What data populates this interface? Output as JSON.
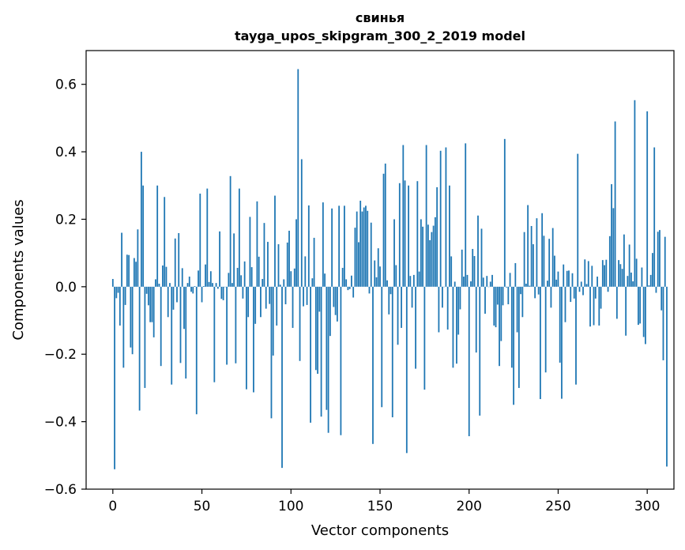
{
  "chart_data": {
    "type": "bar",
    "title": "свинья",
    "subtitle": "tayga_upos_skipgram_300_2_2019 model",
    "xlabel": "Vector components",
    "ylabel": "Components values",
    "xlim": [
      -15,
      315
    ],
    "ylim": [
      -0.6,
      0.7
    ],
    "xticks": [
      0,
      50,
      100,
      150,
      200,
      250,
      300
    ],
    "yticks": [
      -0.6,
      -0.4,
      -0.2,
      0.0,
      0.2,
      0.4,
      0.6
    ],
    "xtick_labels": [
      "0",
      "50",
      "100",
      "150",
      "200",
      "250",
      "300"
    ],
    "ytick_labels": [
      "−0.6",
      "−0.4",
      "−0.2",
      "0.0",
      "0.2",
      "0.4",
      "0.6"
    ],
    "bar_color": "#1f77b4",
    "values": [
      0.023,
      -0.541,
      -0.034,
      -0.018,
      -0.115,
      0.16,
      -0.24,
      -0.054,
      0.095,
      0.094,
      -0.18,
      -0.2,
      0.085,
      0.074,
      0.17,
      -0.367,
      0.4,
      0.3,
      -0.3,
      -0.021,
      -0.055,
      -0.105,
      -0.105,
      -0.15,
      0.022,
      0.3,
      0.009,
      -0.235,
      0.063,
      0.266,
      0.059,
      -0.09,
      0.011,
      -0.29,
      -0.068,
      0.143,
      -0.046,
      0.159,
      -0.226,
      0.055,
      -0.125,
      -0.272,
      0.011,
      0.03,
      -0.015,
      -0.02,
      0.002,
      -0.378,
      0.048,
      0.276,
      -0.046,
      0.002,
      0.066,
      0.291,
      0.014,
      0.046,
      0.011,
      -0.283,
      0.011,
      -0.006,
      0.164,
      -0.036,
      -0.04,
      0.0,
      -0.231,
      0.041,
      0.328,
      0.011,
      0.158,
      -0.227,
      0.056,
      0.291,
      0.034,
      -0.035,
      0.075,
      -0.304,
      -0.09,
      0.207,
      0.058,
      -0.313,
      -0.11,
      0.253,
      0.089,
      -0.09,
      0.023,
      0.189,
      -0.065,
      0.133,
      -0.051,
      -0.39,
      -0.204,
      0.27,
      -0.115,
      0.126,
      0.006,
      -0.537,
      0.022,
      -0.052,
      0.131,
      0.166,
      0.046,
      -0.122,
      0.054,
      0.2,
      0.645,
      -0.22,
      0.378,
      -0.058,
      0.09,
      -0.054,
      0.241,
      -0.403,
      0.025,
      0.145,
      -0.247,
      -0.258,
      -0.074,
      -0.385,
      0.25,
      0.039,
      -0.365,
      -0.433,
      -0.146,
      0.232,
      -0.06,
      -0.084,
      -0.103,
      0.24,
      -0.44,
      0.056,
      0.24,
      0.022,
      -0.01,
      -0.007,
      0.033,
      -0.032,
      0.175,
      0.223,
      0.132,
      0.255,
      0.223,
      0.235,
      0.24,
      0.225,
      -0.02,
      0.19,
      -0.466,
      0.078,
      0.028,
      0.114,
      0.06,
      -0.357,
      0.335,
      0.365,
      0.019,
      -0.082,
      -0.022,
      -0.387,
      0.2,
      0.064,
      -0.172,
      0.307,
      -0.122,
      0.42,
      0.315,
      -0.493,
      0.3,
      0.032,
      -0.062,
      0.035,
      -0.243,
      0.313,
      0.045,
      0.2,
      0.178,
      -0.305,
      0.42,
      0.184,
      0.138,
      0.162,
      0.181,
      0.206,
      0.295,
      -0.135,
      0.403,
      -0.062,
      0.0,
      0.413,
      -0.127,
      0.3,
      0.09,
      -0.24,
      0.015,
      -0.228,
      -0.142,
      -0.067,
      0.11,
      0.03,
      0.425,
      0.035,
      -0.443,
      0.016,
      0.112,
      0.091,
      -0.195,
      0.211,
      -0.382,
      0.172,
      0.027,
      -0.08,
      0.032,
      0.0,
      0.015,
      0.035,
      -0.115,
      -0.12,
      -0.053,
      -0.235,
      -0.161,
      -0.055,
      0.438,
      -0.002,
      -0.052,
      0.041,
      -0.24,
      -0.35,
      0.07,
      -0.135,
      -0.3,
      -0.022,
      -0.09,
      0.162,
      0.009,
      0.242,
      0.003,
      0.18,
      0.126,
      -0.034,
      0.203,
      -0.023,
      -0.333,
      0.218,
      0.151,
      -0.254,
      0.018,
      0.142,
      -0.062,
      0.174,
      0.092,
      0.021,
      0.045,
      -0.225,
      -0.332,
      0.066,
      -0.105,
      0.047,
      0.048,
      -0.045,
      0.04,
      -0.035,
      -0.29,
      0.394,
      -0.015,
      0.015,
      -0.025,
      0.081,
      0.008,
      0.076,
      -0.118,
      0.062,
      -0.114,
      -0.035,
      0.03,
      -0.115,
      -0.065,
      0.079,
      0.064,
      0.08,
      -0.015,
      0.15,
      0.304,
      0.233,
      0.49,
      -0.095,
      0.079,
      0.067,
      0.053,
      0.155,
      -0.145,
      0.032,
      0.125,
      0.042,
      0.016,
      0.553,
      0.083,
      -0.113,
      -0.109,
      0.057,
      -0.149,
      -0.17,
      0.52,
      0.004,
      0.035,
      0.1,
      0.413,
      -0.018,
      0.163,
      0.168,
      -0.07,
      -0.218,
      0.148,
      -0.533
    ]
  }
}
